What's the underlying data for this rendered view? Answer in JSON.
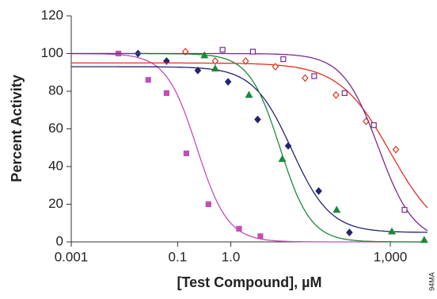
{
  "chart_data": {
    "type": "scatter",
    "x_label": "[Test Compound], µM",
    "y_label": "Percent Activity",
    "side_note": "94MA",
    "xscale": "log",
    "xlim": [
      0.001,
      5000
    ],
    "ylim": [
      0,
      120
    ],
    "xticks": [
      0.001,
      0.1,
      {
        "value": 1,
        "label": "1.0"
      },
      {
        "value": 1000,
        "label": "1,000"
      }
    ],
    "yticks": [
      0,
      20,
      40,
      60,
      80,
      100,
      120
    ],
    "series": [
      {
        "color": "#c44fb4",
        "marker": "square",
        "filled": true,
        "x": [
          0.0077,
          0.028,
          0.062,
          0.146,
          0.38,
          1.43,
          3.6
        ],
        "values": [
          100,
          86,
          79,
          47,
          20,
          7,
          3
        ],
        "curve": {
          "top": 100,
          "bottom": 0,
          "ec50": 0.23,
          "hill": 1.5
        }
      },
      {
        "color": "#24246e",
        "marker": "diamond",
        "filled": true,
        "x": [
          0.018,
          0.062,
          0.24,
          0.89,
          3.2,
          12,
          45,
          170
        ],
        "values": [
          100,
          96,
          91,
          85,
          65,
          51,
          27,
          5
        ],
        "curve": {
          "top": 93,
          "bottom": 5,
          "ec50": 14,
          "hill": 1.2
        }
      },
      {
        "color": "#1a8a3a",
        "marker": "triangle",
        "filled": true,
        "x": [
          0.32,
          0.51,
          2.2,
          9.3,
          98,
          1070,
          4340
        ],
        "values": [
          99,
          92,
          78,
          44,
          17,
          5.5,
          1
        ],
        "curve": {
          "top": 100,
          "bottom": 0,
          "ec50": 8.4,
          "hill": 1.5
        }
      },
      {
        "color": "#e0301e",
        "marker": "diamond",
        "filled": false,
        "x": [
          0.14,
          0.51,
          1.9,
          6.9,
          25,
          95,
          350,
          1270
        ],
        "values": [
          101,
          96,
          96,
          93,
          87,
          78,
          64,
          49
        ],
        "curve": {
          "top": 95,
          "bottom": 0,
          "ec50": 1000,
          "hill": 0.9
        }
      },
      {
        "color": "#7a2a8c",
        "marker": "square",
        "filled": false,
        "x": [
          0.7,
          2.6,
          9.7,
          37,
          138,
          490,
          1850
        ],
        "values": [
          102,
          101,
          97,
          88,
          79,
          62,
          17
        ],
        "curve": {
          "top": 100,
          "bottom": 0,
          "ec50": 600,
          "hill": 1.3
        }
      }
    ]
  }
}
